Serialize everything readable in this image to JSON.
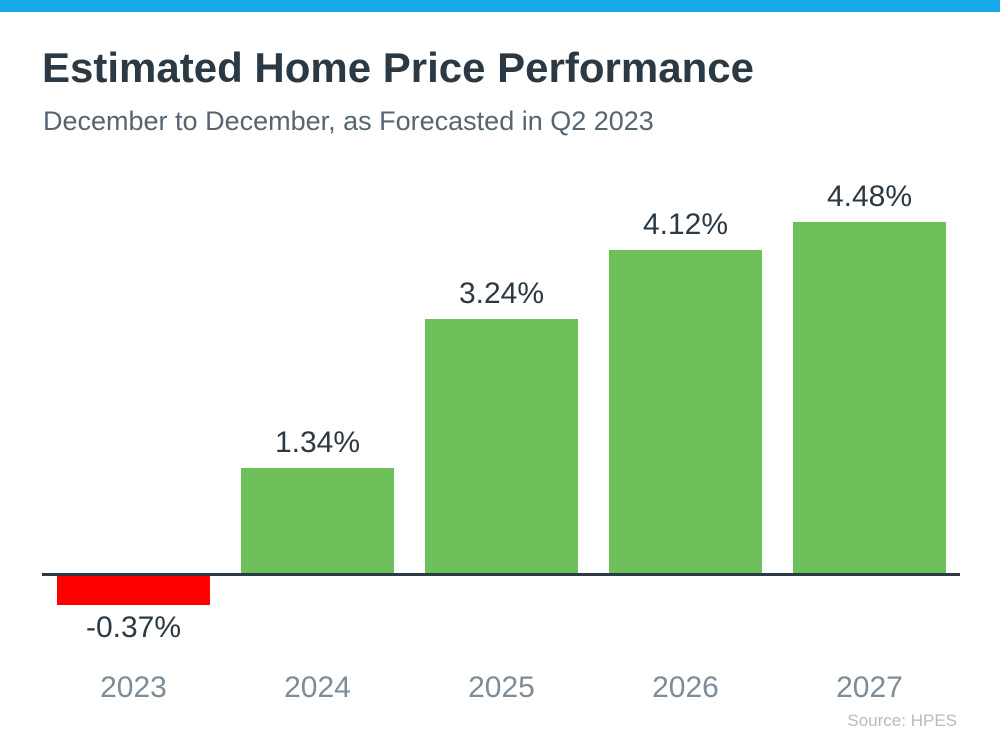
{
  "page": {
    "background_color": "#FFFFFF",
    "accent_bar_color": "#18A9E8"
  },
  "header": {
    "title": "Estimated Home Price Performance",
    "subtitle": "December to December, as Forecasted in Q2 2023"
  },
  "footer": {
    "source": "Source: HPES"
  },
  "chart_data": {
    "type": "bar",
    "title": "Estimated Home Price Performance",
    "subtitle": "December to December, as Forecasted in Q2 2023",
    "categories": [
      "2023",
      "2024",
      "2025",
      "2026",
      "2027"
    ],
    "values": [
      -0.37,
      1.34,
      3.24,
      4.12,
      4.48
    ],
    "value_labels": [
      "-0.37%",
      "1.34%",
      "3.24%",
      "4.12%",
      "4.48%"
    ],
    "xlabel": "",
    "ylabel": "",
    "ylim": [
      -0.6,
      4.8
    ],
    "grid": false,
    "legend": "none",
    "bar_color_positive": "#6EC05A",
    "bar_color_negative": "#FF0000",
    "axis_line_color": "#2B3944",
    "value_label_color": "#2B3944",
    "category_label_color": "#7D8C99",
    "source_label": "Source: HPES"
  }
}
